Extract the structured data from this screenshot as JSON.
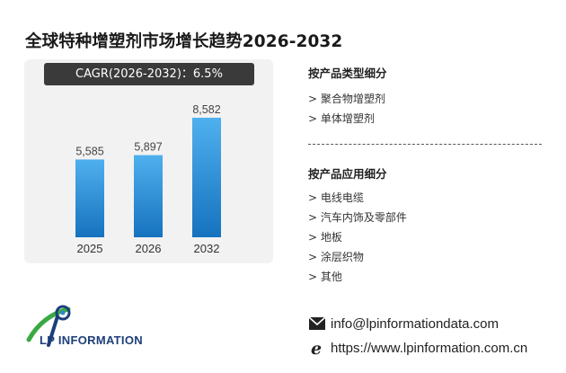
{
  "title": "全球特种增塑剂市场增长趋势2026-2032",
  "cagr_label": "CAGR(2026-2032)：6.5%",
  "chart_data": {
    "type": "bar",
    "categories": [
      "2025",
      "2026",
      "2032"
    ],
    "values": [
      5585,
      5897,
      8582
    ],
    "value_labels": [
      "5,585",
      "5,897",
      "8,582"
    ],
    "title": "",
    "xlabel": "",
    "ylabel": "",
    "ylim": [
      0,
      10000
    ],
    "grid": false,
    "legend": "none",
    "bar_color_top": "#4fb0ee",
    "bar_color_bottom": "#1672be"
  },
  "segments": {
    "by_product": {
      "title": "按产品类型细分",
      "items": [
        "> 聚合物增塑剂",
        "> 单体增塑剂"
      ]
    },
    "by_application": {
      "title": "按产品应用细分",
      "items": [
        "> 电线电缆",
        "> 汽车内饰及零部件",
        "> 地板",
        "> 涂层织物",
        "> 其他"
      ]
    }
  },
  "logo": {
    "text": "LP INFORMATION",
    "icon": "lp-logo-icon"
  },
  "contact": {
    "email": "info@lpinformationdata.com",
    "website": "https://www.lpinformation.com.cn",
    "email_icon": "envelope-icon",
    "web_icon": "web-e-icon"
  },
  "colors": {
    "accent": "#2d86d6",
    "logo_blue": "#1d3f7a",
    "logo_green": "#3aa843"
  }
}
